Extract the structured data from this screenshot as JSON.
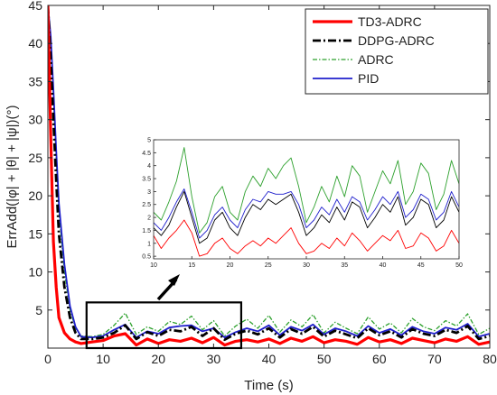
{
  "chart_data": [
    {
      "type": "line",
      "xlabel": "Time (s)",
      "ylabel": "ErrAdd(|φ| + |θ| + |ψ|)(°)",
      "xlim": [
        0,
        80
      ],
      "ylim": [
        0,
        45
      ],
      "xticks": [
        "0",
        "10",
        "20",
        "30",
        "40",
        "50",
        "60",
        "70",
        "80"
      ],
      "yticks": [
        "5",
        "10",
        "15",
        "20",
        "25",
        "30",
        "35",
        "40",
        "45"
      ],
      "grid": false,
      "legend_position": "top-right",
      "series": [
        {
          "name": "TD3-ADRC",
          "color": "#ff0000",
          "style": "solid",
          "x": [
            0,
            0.5,
            1,
            1.5,
            2,
            3,
            4,
            5,
            6,
            8,
            10,
            12,
            14,
            16,
            18,
            20,
            22,
            24,
            26,
            28,
            30,
            32,
            34,
            36,
            38,
            40,
            42,
            44,
            46,
            48,
            50,
            52,
            54,
            56,
            58,
            60,
            62,
            64,
            66,
            68,
            70,
            72,
            74,
            76,
            78,
            80
          ],
          "y": [
            45,
            28,
            14,
            8,
            4,
            2,
            1.2,
            0.8,
            0.6,
            0.8,
            1.0,
            1.6,
            1.9,
            0.4,
            1.2,
            0.6,
            1.1,
            0.9,
            1.3,
            0.7,
            1.4,
            0.4,
            0.9,
            1.1,
            0.8,
            1.2,
            0.6,
            1.3,
            0.9,
            1.5,
            0.7,
            1.1,
            0.9,
            0.5,
            1.4,
            0.8,
            1.1,
            0.6,
            1.3,
            1.0,
            0.7,
            1.2,
            0.9,
            1.5,
            0.5,
            0.8
          ]
        },
        {
          "name": "DDPG-ADRC",
          "color": "#000000",
          "style": "dashdot",
          "x": [
            0,
            0.5,
            1,
            1.5,
            2,
            3,
            4,
            5,
            6,
            8,
            10,
            12,
            14,
            16,
            18,
            20,
            22,
            24,
            26,
            28,
            30,
            32,
            34,
            36,
            38,
            40,
            42,
            44,
            46,
            48,
            50,
            52,
            54,
            56,
            58,
            60,
            62,
            64,
            66,
            68,
            70,
            72,
            74,
            76,
            78,
            80
          ],
          "y": [
            45,
            38,
            30,
            22,
            15,
            8,
            4,
            2,
            1.2,
            1.2,
            1.4,
            2.0,
            3.0,
            1.2,
            2.1,
            1.6,
            2.4,
            2.2,
            2.8,
            1.6,
            2.6,
            1.1,
            1.9,
            2.3,
            1.8,
            2.6,
            1.4,
            2.5,
            1.9,
            2.8,
            1.5,
            2.3,
            1.8,
            1.3,
            2.6,
            1.7,
            2.2,
            1.4,
            2.5,
            1.9,
            1.6,
            2.4,
            2.0,
            2.9,
            1.2,
            1.6
          ]
        },
        {
          "name": "ADRC",
          "color": "#2ca02c",
          "style": "dashdot-thin",
          "x": [
            0,
            0.5,
            1,
            1.5,
            2,
            3,
            4,
            5,
            6,
            8,
            10,
            12,
            14,
            16,
            18,
            20,
            22,
            24,
            26,
            28,
            30,
            32,
            34,
            36,
            38,
            40,
            42,
            44,
            46,
            48,
            50,
            52,
            54,
            56,
            58,
            60,
            62,
            64,
            66,
            68,
            70,
            72,
            74,
            76,
            78,
            80
          ],
          "y": [
            45,
            40,
            33,
            25,
            18,
            10,
            5,
            2.6,
            1.6,
            1.5,
            1.8,
            3.0,
            4.6,
            1.8,
            2.8,
            2.2,
            3.5,
            3.1,
            4.2,
            2.4,
            3.6,
            1.6,
            2.9,
            3.8,
            2.6,
            4.3,
            2.1,
            3.7,
            2.8,
            4.4,
            2.0,
            3.4,
            2.6,
            1.9,
            4.1,
            2.5,
            3.3,
            2.0,
            3.9,
            2.8,
            2.3,
            3.6,
            2.9,
            4.5,
            1.8,
            2.6
          ]
        },
        {
          "name": "PID",
          "color": "#1f1fcc",
          "style": "solid",
          "x": [
            0,
            0.5,
            1,
            1.5,
            2,
            3,
            4,
            5,
            6,
            8,
            10,
            12,
            14,
            16,
            18,
            20,
            22,
            24,
            26,
            28,
            30,
            32,
            34,
            36,
            38,
            40,
            42,
            44,
            46,
            48,
            50,
            52,
            54,
            56,
            58,
            60,
            62,
            64,
            66,
            68,
            70,
            72,
            74,
            76,
            78,
            80
          ],
          "y": [
            45,
            41,
            34,
            26,
            19,
            11,
            5.5,
            2.8,
            1.5,
            1.4,
            1.6,
            2.4,
            3.1,
            1.4,
            2.2,
            1.9,
            2.7,
            2.9,
            3.0,
            2.2,
            2.6,
            1.4,
            2.1,
            2.6,
            2.2,
            3.0,
            1.7,
            2.8,
            2.3,
            3.1,
            1.8,
            2.6,
            2.2,
            1.6,
            2.9,
            2.0,
            2.5,
            1.7,
            2.8,
            2.2,
            1.9,
            2.7,
            2.4,
            3.2,
            1.5,
            1.9
          ]
        }
      ],
      "zoom_box": {
        "xlim": [
          7,
          35
        ],
        "ylim": [
          0,
          6
        ]
      }
    },
    {
      "type": "line",
      "xlim": [
        10,
        50
      ],
      "ylim": [
        0.4,
        5
      ],
      "xticks": [
        "10",
        "15",
        "20",
        "25",
        "30",
        "35",
        "40",
        "45",
        "50"
      ],
      "yticks": [
        "0.5",
        "1",
        "1.5",
        "2",
        "2.5",
        "3",
        "3.5",
        "4",
        "4.5",
        "5"
      ],
      "grid": false,
      "series": [
        {
          "name": "TD3-ADRC",
          "color": "#ff0000",
          "x": [
            10,
            11,
            12,
            13,
            14,
            15,
            16,
            17,
            18,
            19,
            20,
            21,
            22,
            23,
            24,
            25,
            26,
            27,
            28,
            29,
            30,
            31,
            32,
            33,
            34,
            35,
            36,
            37,
            38,
            39,
            40,
            41,
            42,
            43,
            44,
            45,
            46,
            47,
            48,
            49,
            50
          ],
          "y": [
            1.3,
            0.8,
            1.2,
            1.5,
            1.9,
            1.4,
            0.5,
            0.6,
            1.0,
            1.2,
            0.8,
            0.6,
            0.9,
            1.1,
            0.9,
            1.2,
            1.0,
            1.3,
            1.6,
            1.0,
            0.6,
            0.7,
            1.0,
            0.8,
            1.2,
            0.9,
            1.4,
            1.1,
            0.7,
            1.0,
            1.3,
            1.1,
            1.5,
            0.8,
            0.9,
            1.4,
            1.2,
            0.7,
            0.9,
            1.5,
            1.0
          ]
        },
        {
          "name": "DDPG-ADRC",
          "color": "#000000",
          "x": [
            10,
            11,
            12,
            13,
            14,
            15,
            16,
            17,
            18,
            19,
            20,
            21,
            22,
            23,
            24,
            25,
            26,
            27,
            28,
            29,
            30,
            31,
            32,
            33,
            34,
            35,
            36,
            37,
            38,
            39,
            40,
            41,
            42,
            43,
            44,
            45,
            46,
            47,
            48,
            49,
            50
          ],
          "y": [
            1.6,
            1.3,
            1.7,
            2.4,
            3.0,
            2.0,
            1.0,
            1.2,
            1.9,
            2.2,
            1.6,
            1.3,
            2.0,
            2.5,
            2.3,
            2.7,
            2.5,
            2.7,
            2.9,
            2.2,
            1.3,
            1.6,
            2.1,
            1.8,
            2.4,
            1.9,
            2.6,
            2.4,
            1.6,
            2.0,
            2.5,
            2.2,
            2.8,
            1.7,
            2.0,
            2.7,
            2.5,
            1.6,
            1.9,
            2.8,
            2.2
          ]
        },
        {
          "name": "ADRC",
          "color": "#2ca02c",
          "x": [
            10,
            11,
            12,
            13,
            14,
            15,
            16,
            17,
            18,
            19,
            20,
            21,
            22,
            23,
            24,
            25,
            26,
            27,
            28,
            29,
            30,
            31,
            32,
            33,
            34,
            35,
            36,
            37,
            38,
            39,
            40,
            41,
            42,
            43,
            44,
            45,
            46,
            47,
            48,
            49,
            50
          ],
          "y": [
            2.2,
            1.9,
            2.6,
            3.4,
            4.7,
            2.8,
            1.4,
            1.8,
            2.8,
            3.2,
            2.2,
            1.9,
            3.0,
            3.6,
            3.2,
            3.9,
            3.5,
            4.0,
            4.3,
            3.2,
            1.8,
            2.4,
            3.2,
            2.6,
            3.6,
            2.8,
            4.0,
            3.6,
            2.2,
            3.0,
            3.8,
            3.3,
            4.2,
            2.5,
            3.0,
            4.1,
            3.7,
            2.3,
            2.9,
            4.2,
            3.3
          ]
        },
        {
          "name": "PID",
          "color": "#1f1fcc",
          "x": [
            10,
            11,
            12,
            13,
            14,
            15,
            16,
            17,
            18,
            19,
            20,
            21,
            22,
            23,
            24,
            25,
            26,
            27,
            28,
            29,
            30,
            31,
            32,
            33,
            34,
            35,
            36,
            37,
            38,
            39,
            40,
            41,
            42,
            43,
            44,
            45,
            46,
            47,
            48,
            49,
            50
          ],
          "y": [
            1.8,
            1.5,
            2.0,
            2.6,
            3.1,
            2.2,
            1.2,
            1.5,
            2.1,
            2.4,
            1.9,
            1.6,
            2.3,
            2.7,
            2.6,
            3.0,
            2.9,
            2.9,
            3.0,
            2.5,
            1.6,
            1.9,
            2.4,
            2.1,
            2.7,
            2.2,
            2.8,
            2.6,
            1.9,
            2.3,
            2.8,
            2.5,
            3.0,
            2.0,
            2.3,
            2.9,
            2.7,
            1.9,
            2.2,
            3.0,
            2.4
          ]
        }
      ]
    }
  ]
}
